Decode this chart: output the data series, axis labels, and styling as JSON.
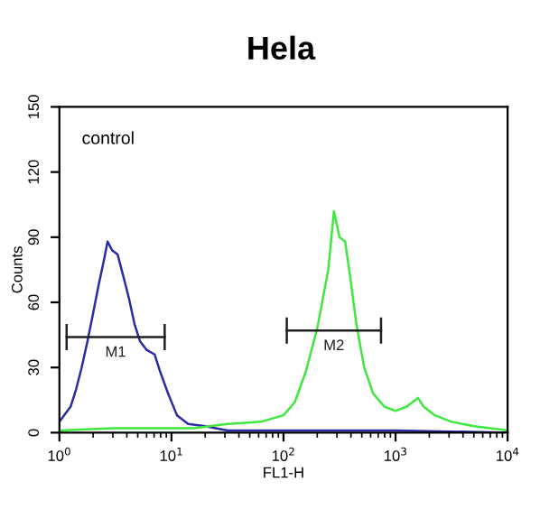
{
  "chart_data": {
    "type": "line",
    "title": "Hela",
    "xlabel": "FL1-H",
    "ylabel": "Counts",
    "log": "x",
    "xlim": [
      1,
      10000
    ],
    "xticks": [
      {
        "value": 1,
        "label": "10$^{0}$"
      },
      {
        "value": 10,
        "label": "10$^{1}$"
      },
      {
        "value": 100,
        "label": "10$^{2}$"
      },
      {
        "value": 1000,
        "label": "10$^{3}$"
      },
      {
        "value": 10000,
        "label": "10$^{4}$"
      }
    ],
    "ylim": [
      0,
      150
    ],
    "yticks": [
      0,
      30,
      60,
      90,
      120,
      150
    ],
    "grid": false,
    "legend": false,
    "annotations": [
      "control"
    ],
    "series": [
      {
        "color": "#2b2ba8",
        "x": [
          1.0,
          1.26,
          1.41,
          1.58,
          1.78,
          2.0,
          2.24,
          2.51,
          2.69,
          2.95,
          3.31,
          3.72,
          4.17,
          4.68,
          5.25,
          6.03,
          7.08,
          7.94,
          9.33,
          11.2,
          14.1,
          20,
          31.6,
          100,
          1000,
          10000
        ],
        "values": [
          5,
          12,
          20,
          30,
          42,
          55,
          68,
          80,
          88,
          84,
          82,
          72,
          62,
          50,
          42,
          38,
          36,
          28,
          18,
          8,
          4,
          3,
          1,
          1,
          1,
          0
        ]
      },
      {
        "color": "#3ee83e",
        "x": [
          1,
          3,
          15.8,
          31.6,
          63.1,
          100,
          126,
          158,
          200,
          251,
          282,
          316,
          355,
          398,
          447,
          525,
          631,
          794,
          1000,
          1259,
          1585,
          1778,
          2239,
          3162,
          5012,
          10000
        ],
        "values": [
          1,
          2,
          2,
          4,
          5,
          8,
          14,
          28,
          48,
          75,
          102,
          90,
          88,
          70,
          50,
          30,
          18,
          12,
          10,
          12,
          16,
          12,
          8,
          5,
          3,
          1
        ]
      },
      {
        "name": "M1",
        "color": "#202020",
        "x": [
          1.16,
          8.7
        ],
        "values": [
          44,
          44
        ],
        "errors": [
          6,
          6
        ]
      },
      {
        "name": "M2",
        "color": "#202020",
        "x": [
          107,
          742
        ],
        "values": [
          47,
          47
        ],
        "errors": [
          6,
          6
        ]
      }
    ]
  }
}
